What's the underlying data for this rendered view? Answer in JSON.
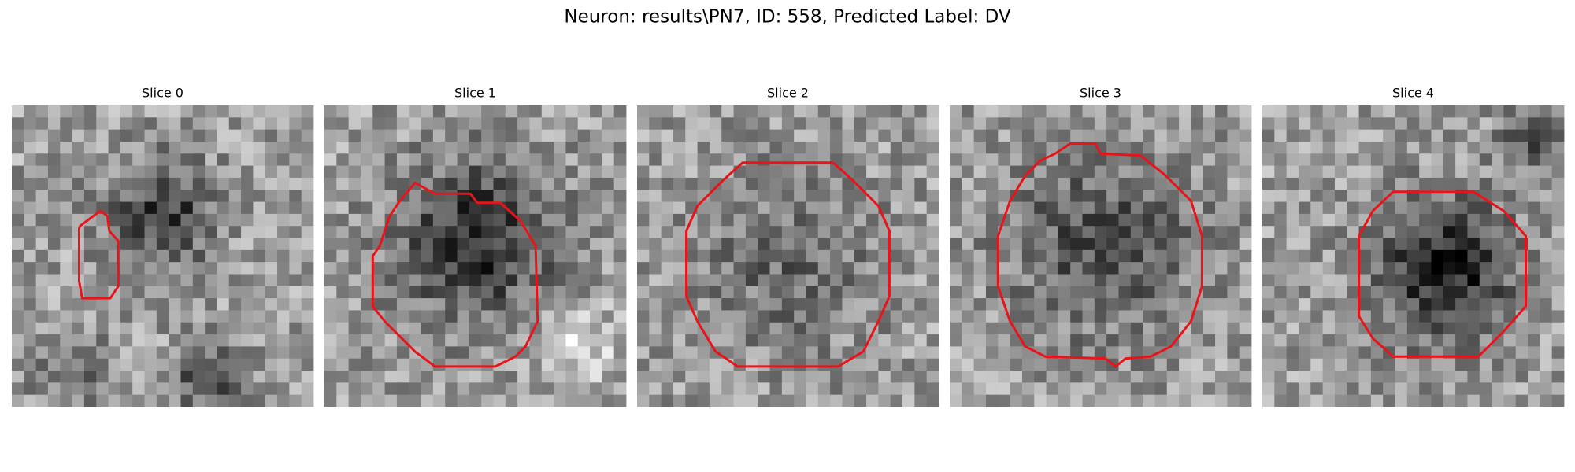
{
  "title": "Neuron: results\\PN7, ID: 558, Predicted Label: DV",
  "panels": [
    {
      "title": "Slice 0"
    },
    {
      "title": "Slice 1"
    },
    {
      "title": "Slice 2"
    },
    {
      "title": "Slice 3"
    },
    {
      "title": "Slice 4"
    }
  ]
}
